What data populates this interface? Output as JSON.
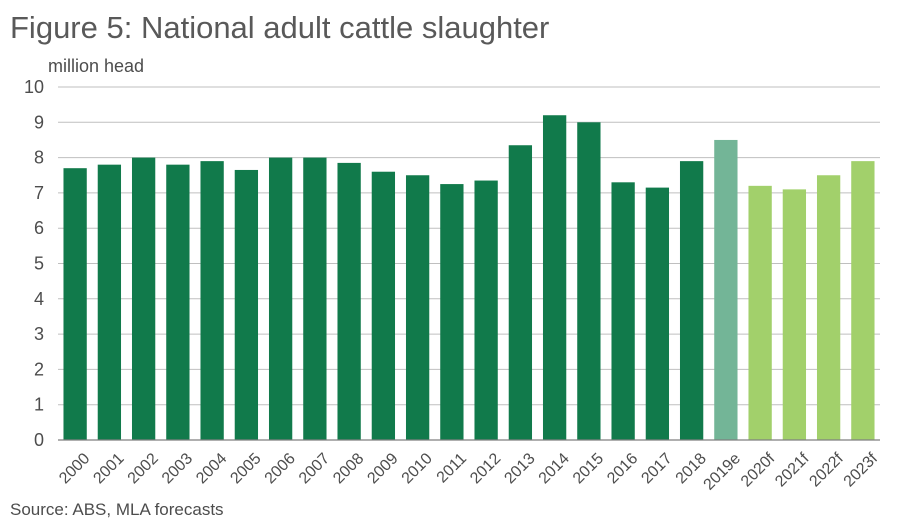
{
  "chart_data": {
    "type": "bar",
    "title": "Figure 5: National adult cattle slaughter",
    "ylabel": "million head",
    "xlabel": "",
    "source": "Source: ABS, MLA forecasts",
    "ylim": [
      0,
      10
    ],
    "yticks": [
      0,
      1,
      2,
      3,
      4,
      5,
      6,
      7,
      8,
      9,
      10
    ],
    "grid": true,
    "categories": [
      "2000",
      "2001",
      "2002",
      "2003",
      "2004",
      "2005",
      "2006",
      "2007",
      "2008",
      "2009",
      "2010",
      "2011",
      "2012",
      "2013",
      "2014",
      "2015",
      "2016",
      "2017",
      "2018",
      "2019e",
      "2020f",
      "2021f",
      "2022f",
      "2023f"
    ],
    "values": [
      7.7,
      7.8,
      8.0,
      7.8,
      7.9,
      7.65,
      8.0,
      8.0,
      7.85,
      7.6,
      7.5,
      7.25,
      7.35,
      8.35,
      9.2,
      9.0,
      7.3,
      7.15,
      7.9,
      8.5,
      7.2,
      7.1,
      7.5,
      7.9
    ],
    "colors": {
      "actual": "#117a4b",
      "estimate": "#73b597",
      "forecast": "#a2d06b",
      "grid": "#bfbfbf"
    },
    "bar_kind": [
      "actual",
      "actual",
      "actual",
      "actual",
      "actual",
      "actual",
      "actual",
      "actual",
      "actual",
      "actual",
      "actual",
      "actual",
      "actual",
      "actual",
      "actual",
      "actual",
      "actual",
      "actual",
      "actual",
      "estimate",
      "forecast",
      "forecast",
      "forecast",
      "forecast"
    ]
  }
}
